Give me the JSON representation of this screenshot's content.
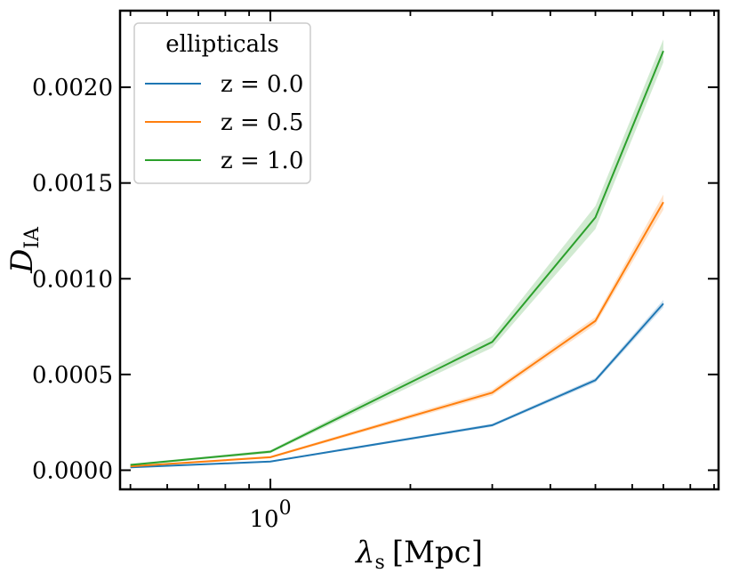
{
  "chart_data": {
    "type": "line",
    "xscale": "log",
    "xlabel": "λs [Mpc]",
    "xlabel_main": "λ",
    "xlabel_sub": "s",
    "xlabel_unit": "[Mpc]",
    "ylabel": "DIA",
    "ylabel_main": "D",
    "ylabel_sub": "IA",
    "xlim": [
      0.475,
      9.2
    ],
    "ylim": [
      -0.0001,
      0.0024
    ],
    "x_major_ticks": [
      1
    ],
    "x_major_tick_labels": [
      {
        "base": "10",
        "exp": "0"
      }
    ],
    "x_minor_ticks": [
      0.5,
      0.6,
      0.7,
      0.8,
      0.9,
      2,
      3,
      4,
      5,
      6,
      7,
      8,
      9
    ],
    "y_ticks": [
      0.0,
      0.0005,
      0.001,
      0.0015,
      0.002
    ],
    "y_tick_labels": [
      "0.0000",
      "0.0005",
      "0.0010",
      "0.0015",
      "0.0020"
    ],
    "x": [
      0.5,
      1.0,
      3.0,
      5.0,
      7.0
    ],
    "legend": {
      "title": "ellipticals",
      "location": "upper-left"
    },
    "series": [
      {
        "name": "z = 0.0",
        "color": "#1f77b4",
        "values": [
          1.5e-05,
          4.5e-05,
          0.000235,
          0.00047,
          0.00087
        ],
        "band": [
          3e-06,
          4e-06,
          8e-06,
          1.2e-05,
          2e-05
        ]
      },
      {
        "name": "z = 0.5",
        "color": "#ff7f0e",
        "values": [
          2e-05,
          6.8e-05,
          0.000405,
          0.00078,
          0.0014
        ],
        "band": [
          4e-06,
          6e-06,
          1.5e-05,
          2e-05,
          4e-05
        ]
      },
      {
        "name": "z = 1.0",
        "color": "#2ca02c",
        "values": [
          2.8e-05,
          9.7e-05,
          0.00067,
          0.00132,
          0.00219
        ],
        "band": [
          5e-06,
          8e-06,
          3e-05,
          6e-05,
          6e-05
        ]
      }
    ]
  }
}
